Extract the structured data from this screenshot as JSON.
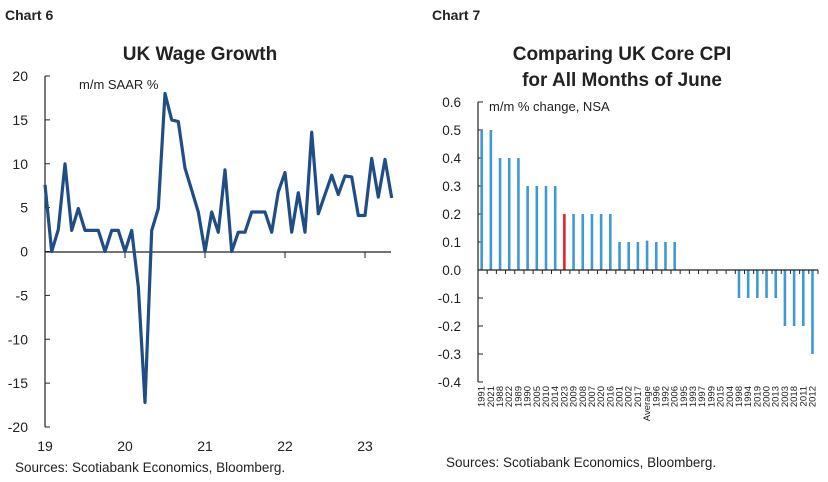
{
  "chart_data": [
    {
      "type": "line",
      "panel_label": "Chart 6",
      "title": "UK Wage Growth",
      "unit_label": "m/m SAAR %",
      "source": "Sources: Scotiabank Economics, Bloomberg.",
      "ylim": [
        -20,
        20
      ],
      "yticks": [
        "20",
        "15",
        "10",
        "5",
        "0",
        "-5",
        "-10",
        "-15",
        "-20"
      ],
      "xticks": [
        "19",
        "20",
        "21",
        "22",
        "23"
      ],
      "x_start": "2019-01",
      "x_frequency": "monthly",
      "grid": false,
      "color": "#1f4e86",
      "values": [
        7.6,
        0,
        2.5,
        10,
        2.4,
        4.9,
        2.4,
        2.4,
        2.4,
        0,
        2.4,
        2.4,
        0,
        2.4,
        -4,
        -17.2,
        2.4,
        4.9,
        18,
        15,
        14.8,
        9.5,
        7,
        4.5,
        0,
        4.5,
        2.2,
        9.3,
        0,
        2.2,
        2.2,
        4.5,
        4.5,
        4.5,
        2.2,
        6.8,
        9,
        2.2,
        6.7,
        2.2,
        13.6,
        4.3,
        6.5,
        8.7,
        6.5,
        8.6,
        8.5,
        4.1,
        4.1,
        10.6,
        6.2,
        10.5,
        6.1
      ]
    },
    {
      "type": "bar",
      "panel_label": "Chart 7",
      "title": [
        "Comparing UK Core CPI",
        "for All Months of June"
      ],
      "unit_label": "m/m % change, NSA",
      "source": "Sources: Scotiabank Economics, Bloomberg.",
      "ylim": [
        -0.4,
        0.6
      ],
      "yticks": [
        "0.6",
        "0.5",
        "0.4",
        "0.3",
        "0.2",
        "0.1",
        "0.0",
        "-0.1",
        "-0.2",
        "-0.3",
        "-0.4"
      ],
      "grid": false,
      "bar_color": "#3f9ad3",
      "highlight_color": "#e8202a",
      "highlight": "2023",
      "categories": [
        "1991",
        "2021",
        "1988",
        "2022",
        "1989",
        "1990",
        "2005",
        "2010",
        "2014",
        "2023",
        "2009",
        "2008",
        "2007",
        "2020",
        "2016",
        "2001",
        "2002",
        "2017",
        "Average",
        "1996",
        "1992",
        "2006",
        "1995",
        "1993",
        "1997",
        "1999",
        "2015",
        "2004",
        "1998",
        "1994",
        "2019",
        "2000",
        "2013",
        "2003",
        "2018",
        "2011",
        "2012"
      ],
      "values": [
        0.5,
        0.5,
        0.4,
        0.4,
        0.4,
        0.3,
        0.3,
        0.3,
        0.3,
        0.2,
        0.2,
        0.2,
        0.2,
        0.2,
        0.2,
        0.1,
        0.1,
        0.1,
        0.105,
        0.1,
        0.1,
        0.1,
        0,
        0,
        0,
        0,
        0,
        0,
        -0.1,
        -0.1,
        -0.1,
        -0.1,
        -0.1,
        -0.2,
        -0.2,
        -0.2,
        -0.3
      ]
    }
  ]
}
